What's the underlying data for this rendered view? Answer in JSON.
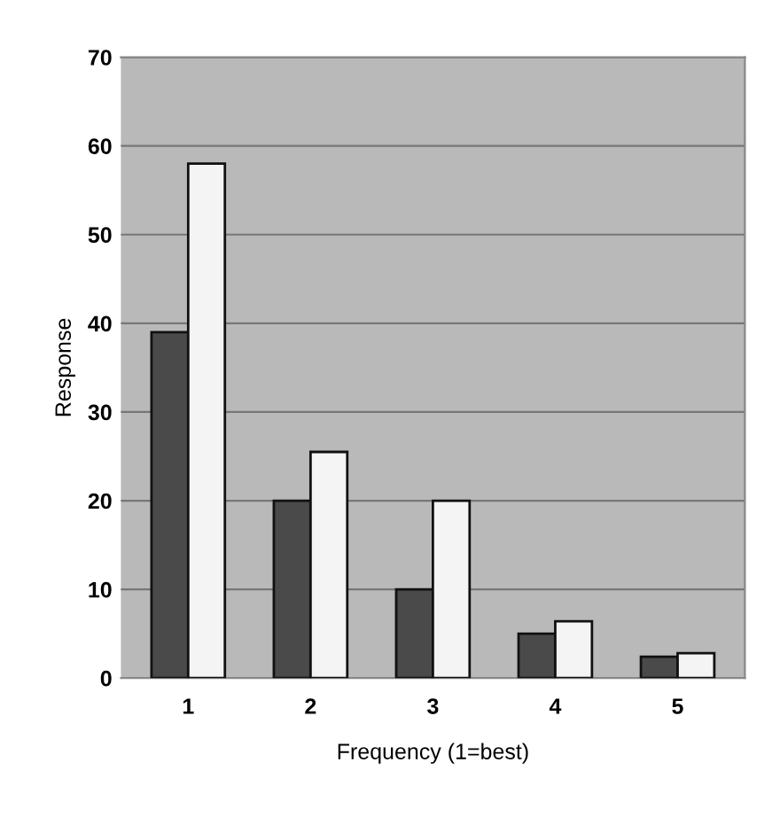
{
  "chart_data": {
    "type": "bar",
    "xlabel": "Frequency (1=best)",
    "ylabel": "Response",
    "categories": [
      "1",
      "2",
      "3",
      "4",
      "5"
    ],
    "series": [
      {
        "color": "#4a4a4a",
        "values": [
          39,
          20,
          10,
          5,
          2.4
        ]
      },
      {
        "color": "#f4f4f4",
        "values": [
          58,
          25.5,
          20,
          6.4,
          2.8
        ]
      }
    ],
    "ylim": [
      0,
      70
    ],
    "yticks": [
      0,
      10,
      20,
      30,
      40,
      50,
      60,
      70
    ],
    "grid": "y"
  }
}
